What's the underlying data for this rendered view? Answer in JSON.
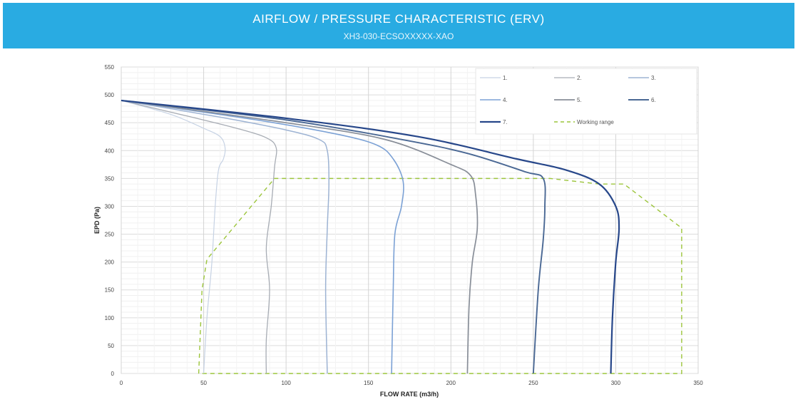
{
  "header": {
    "title": "AIRFLOW / PRESSURE CHARACTERISTIC (ERV)",
    "subtitle": "XH3-030-ECSOXXXXX-XAO"
  },
  "chart_data": {
    "type": "line",
    "xlabel": "FLOW RATE (m3/h)",
    "ylabel": "EPD (Pa)",
    "xlim": [
      0,
      350
    ],
    "ylim": [
      0,
      550
    ],
    "xticks": [
      0,
      50,
      100,
      150,
      200,
      250,
      300,
      350
    ],
    "yticks": [
      0,
      50,
      100,
      150,
      200,
      250,
      300,
      350,
      400,
      450,
      500,
      550
    ],
    "grid": true,
    "legend_position": "top-right",
    "series": [
      {
        "name": "1.",
        "color": "#c6d2e4",
        "width": 1.2,
        "points": [
          [
            0,
            490
          ],
          [
            30,
            465
          ],
          [
            50,
            440
          ],
          [
            60,
            425
          ],
          [
            63,
            405
          ],
          [
            62,
            385
          ],
          [
            59,
            365
          ],
          [
            57,
            300
          ],
          [
            55,
            200
          ],
          [
            52,
            100
          ],
          [
            50,
            0
          ]
        ]
      },
      {
        "name": "2.",
        "color": "#a7acb4",
        "width": 1.3,
        "points": [
          [
            0,
            490
          ],
          [
            40,
            462
          ],
          [
            70,
            440
          ],
          [
            88,
            423
          ],
          [
            94,
            405
          ],
          [
            93,
            370
          ],
          [
            91,
            300
          ],
          [
            88,
            225
          ],
          [
            90,
            150
          ],
          [
            88,
            60
          ],
          [
            88,
            0
          ]
        ]
      },
      {
        "name": "3.",
        "color": "#9db3d3",
        "width": 1.5,
        "points": [
          [
            0,
            490
          ],
          [
            60,
            460
          ],
          [
            100,
            437
          ],
          [
            120,
            420
          ],
          [
            125,
            400
          ],
          [
            126,
            340
          ],
          [
            125,
            260
          ],
          [
            124,
            150
          ],
          [
            125,
            0
          ]
        ]
      },
      {
        "name": "4.",
        "color": "#7ba1d5",
        "width": 1.6,
        "points": [
          [
            0,
            490
          ],
          [
            80,
            456
          ],
          [
            130,
            430
          ],
          [
            155,
            410
          ],
          [
            165,
            385
          ],
          [
            171,
            345
          ],
          [
            170,
            300
          ],
          [
            166,
            250
          ],
          [
            165,
            150
          ],
          [
            164,
            0
          ]
        ]
      },
      {
        "name": "5.",
        "color": "#888e98",
        "width": 1.7,
        "points": [
          [
            0,
            490
          ],
          [
            100,
            450
          ],
          [
            160,
            420
          ],
          [
            200,
            375
          ],
          [
            212,
            355
          ],
          [
            215,
            320
          ],
          [
            216,
            260
          ],
          [
            213,
            200
          ],
          [
            211,
            120
          ],
          [
            210,
            0
          ]
        ]
      },
      {
        "name": "6.",
        "color": "#4a6894",
        "width": 1.9,
        "points": [
          [
            0,
            490
          ],
          [
            100,
            455
          ],
          [
            170,
            420
          ],
          [
            210,
            395
          ],
          [
            245,
            362
          ],
          [
            256,
            350
          ],
          [
            257,
            300
          ],
          [
            256,
            240
          ],
          [
            253,
            150
          ],
          [
            250,
            0
          ]
        ]
      },
      {
        "name": "7.",
        "color": "#27478a",
        "width": 2.2,
        "points": [
          [
            0,
            490
          ],
          [
            100,
            458
          ],
          [
            180,
            425
          ],
          [
            240,
            385
          ],
          [
            270,
            365
          ],
          [
            290,
            340
          ],
          [
            300,
            300
          ],
          [
            302,
            260
          ],
          [
            300,
            200
          ],
          [
            298,
            100
          ],
          [
            297,
            0
          ]
        ]
      }
    ],
    "working_range": {
      "name": "Working range",
      "color": "#9cc53b",
      "points": [
        [
          47,
          0
        ],
        [
          49,
          150
        ],
        [
          52,
          205
        ],
        [
          93,
          350
        ],
        [
          260,
          350
        ],
        [
          290,
          340
        ],
        [
          305,
          340
        ],
        [
          340,
          261
        ],
        [
          340,
          0
        ],
        [
          47,
          0
        ]
      ]
    }
  }
}
